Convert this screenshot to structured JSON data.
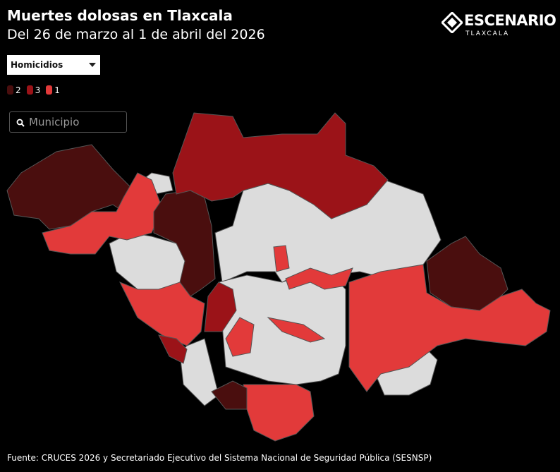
{
  "header": {
    "title": "Muertes dolosas en Tlaxcala",
    "subtitle": "Del 26 de marzo al 1 de abril del 2026"
  },
  "logo": {
    "name": "ESCENARIO",
    "place": "TLAXCALA"
  },
  "filter": {
    "selected": "Homicidios"
  },
  "legend": [
    {
      "label": "2",
      "color": "#4a0e0e"
    },
    {
      "label": "3",
      "color": "#9b1318"
    },
    {
      "label": "1",
      "color": "#e23a3a"
    }
  ],
  "search": {
    "placeholder": "Municipio"
  },
  "footer": {
    "source": "Fuente: CRUCES 2026 y Secretariado Ejecutivo del Sistema Nacional de Seguridad Pública (SESNSP)"
  }
}
